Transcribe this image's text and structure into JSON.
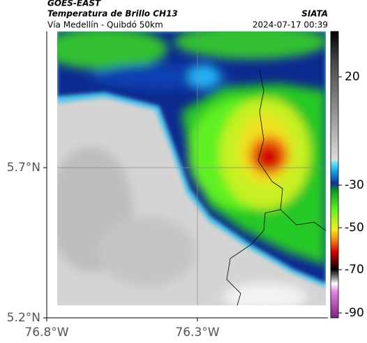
{
  "header": {
    "title": "GOES-EAST",
    "subtitle": "Temperatura de Brillo CH13",
    "source": "SIATA",
    "region": "Vía Medellín - Quibdó 50km",
    "timestamp": "2024-07-17 00:39"
  },
  "map": {
    "lat_labels": [
      "5.7°N",
      "5.2°N"
    ],
    "lon_labels": [
      "76.8°W",
      "76.3°W"
    ],
    "colorbar_ticks": [
      "20",
      "-30",
      "-50",
      "-70",
      "-90"
    ]
  }
}
